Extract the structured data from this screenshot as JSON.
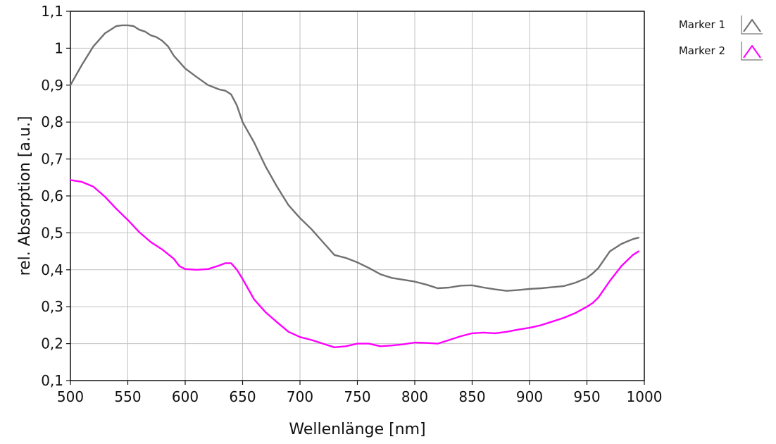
{
  "chart_data": {
    "type": "line",
    "xlabel": "Wellenlänge [nm]",
    "ylabel": "rel. Absorption [a.u.]",
    "xlim": [
      500,
      1000
    ],
    "ylim": [
      0.1,
      1.1
    ],
    "x_ticks": [
      500,
      550,
      600,
      650,
      700,
      750,
      800,
      850,
      900,
      950,
      1000
    ],
    "x_tick_labels": [
      "500",
      "550",
      "600",
      "650",
      "700",
      "750",
      "800",
      "850",
      "900",
      "950",
      "1000"
    ],
    "y_ticks": [
      0.1,
      0.2,
      0.3,
      0.4,
      0.5,
      0.6,
      0.7,
      0.8,
      0.9,
      1.0,
      1.1
    ],
    "y_tick_labels": [
      "0,1",
      "0,2",
      "0,3",
      "0,4",
      "0,5",
      "0,6",
      "0,7",
      "0,8",
      "0,9",
      "1",
      "1,1"
    ],
    "grid": true,
    "legend_position": "top-right outside",
    "series": [
      {
        "name": "Marker 1",
        "color": "#707070",
        "x": [
          500,
          510,
          520,
          530,
          540,
          545,
          550,
          555,
          560,
          565,
          570,
          575,
          580,
          585,
          590,
          600,
          610,
          620,
          630,
          635,
          640,
          645,
          650,
          660,
          670,
          680,
          690,
          700,
          710,
          720,
          730,
          740,
          750,
          760,
          770,
          780,
          790,
          800,
          810,
          820,
          830,
          840,
          850,
          860,
          870,
          880,
          890,
          900,
          910,
          920,
          930,
          940,
          950,
          955,
          960,
          970,
          980,
          990,
          995
        ],
        "y": [
          0.9,
          0.955,
          1.005,
          1.04,
          1.06,
          1.062,
          1.062,
          1.06,
          1.05,
          1.045,
          1.035,
          1.03,
          1.02,
          1.005,
          0.98,
          0.945,
          0.922,
          0.9,
          0.888,
          0.885,
          0.875,
          0.845,
          0.8,
          0.745,
          0.68,
          0.625,
          0.575,
          0.54,
          0.51,
          0.475,
          0.44,
          0.432,
          0.42,
          0.405,
          0.388,
          0.378,
          0.373,
          0.368,
          0.36,
          0.35,
          0.352,
          0.357,
          0.358,
          0.352,
          0.347,
          0.343,
          0.345,
          0.348,
          0.35,
          0.353,
          0.356,
          0.365,
          0.378,
          0.39,
          0.405,
          0.45,
          0.47,
          0.483,
          0.487
        ]
      },
      {
        "name": "Marker 2",
        "color": "#ff00ff",
        "x": [
          500,
          510,
          520,
          530,
          540,
          550,
          560,
          570,
          580,
          590,
          595,
          600,
          610,
          620,
          630,
          635,
          640,
          645,
          650,
          660,
          670,
          680,
          690,
          700,
          710,
          720,
          730,
          740,
          750,
          760,
          770,
          780,
          790,
          800,
          810,
          820,
          830,
          840,
          850,
          860,
          870,
          880,
          890,
          900,
          910,
          920,
          930,
          940,
          950,
          955,
          960,
          970,
          980,
          990,
          995
        ],
        "y": [
          0.643,
          0.638,
          0.625,
          0.598,
          0.565,
          0.535,
          0.502,
          0.475,
          0.455,
          0.43,
          0.41,
          0.402,
          0.4,
          0.402,
          0.412,
          0.418,
          0.418,
          0.4,
          0.375,
          0.32,
          0.285,
          0.258,
          0.232,
          0.218,
          0.21,
          0.2,
          0.19,
          0.193,
          0.2,
          0.2,
          0.193,
          0.195,
          0.198,
          0.203,
          0.202,
          0.2,
          0.21,
          0.22,
          0.228,
          0.23,
          0.228,
          0.232,
          0.238,
          0.243,
          0.25,
          0.26,
          0.27,
          0.283,
          0.3,
          0.31,
          0.325,
          0.37,
          0.41,
          0.44,
          0.45
        ]
      }
    ]
  }
}
